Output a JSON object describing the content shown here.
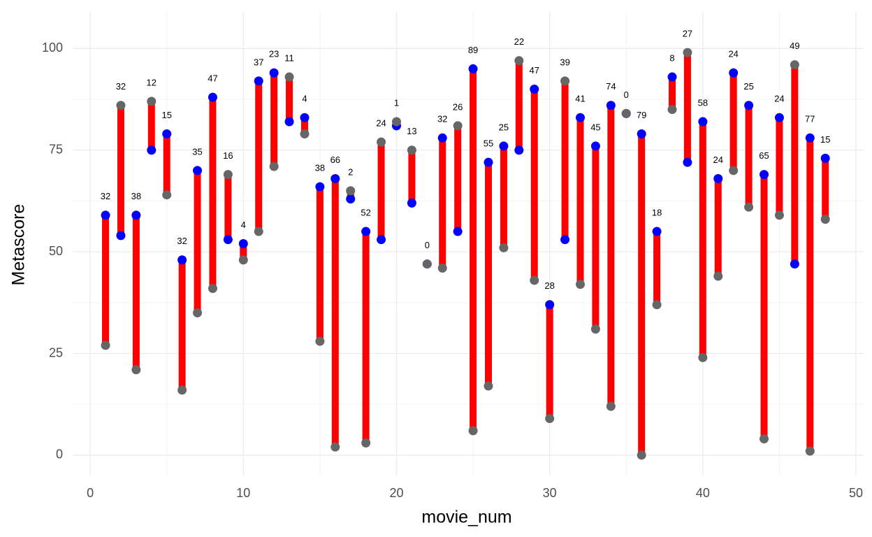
{
  "chart_data": {
    "type": "dumbbell",
    "x_label": "movie_num",
    "y_label": "Metascore",
    "x": [
      1,
      2,
      3,
      4,
      5,
      6,
      7,
      8,
      9,
      10,
      11,
      12,
      13,
      14,
      15,
      16,
      17,
      18,
      19,
      20,
      21,
      22,
      23,
      24,
      25,
      26,
      27,
      28,
      29,
      30,
      31,
      32,
      33,
      34,
      35,
      36,
      37,
      38,
      39,
      40,
      41,
      42,
      43,
      44,
      45,
      46,
      47,
      48
    ],
    "series": [
      {
        "color": "#0000ff",
        "values": [
          59,
          54,
          59,
          75,
          79,
          48,
          70,
          88,
          53,
          52,
          92,
          94,
          82,
          83,
          66,
          68,
          63,
          55,
          53,
          81,
          62,
          47,
          78,
          55,
          95,
          72,
          76,
          75,
          90,
          37,
          53,
          83,
          76,
          86,
          84,
          79,
          55,
          93,
          72,
          82,
          68,
          94,
          86,
          69,
          83,
          47,
          78,
          73
        ]
      },
      {
        "color": "#666666",
        "values": [
          27,
          86,
          21,
          87,
          64,
          16,
          35,
          41,
          69,
          48,
          55,
          71,
          93,
          79,
          28,
          2,
          65,
          3,
          77,
          82,
          75,
          47,
          46,
          81,
          6,
          17,
          51,
          97,
          43,
          9,
          92,
          42,
          31,
          12,
          84,
          0,
          37,
          85,
          99,
          24,
          44,
          70,
          61,
          4,
          59,
          96,
          1,
          58
        ]
      }
    ],
    "labels": [
      32,
      32,
      38,
      12,
      15,
      32,
      35,
      47,
      16,
      4,
      37,
      23,
      11,
      4,
      38,
      66,
      2,
      52,
      24,
      1,
      13,
      0,
      32,
      26,
      89,
      55,
      25,
      22,
      47,
      28,
      39,
      41,
      45,
      74,
      0,
      79,
      18,
      8,
      27,
      58,
      24,
      24,
      25,
      65,
      24,
      49,
      77,
      15
    ],
    "segment_color": "#ff0000",
    "xlim": [
      -1.1,
      50.5
    ],
    "xticks": [
      0,
      10,
      20,
      30,
      40,
      50
    ],
    "ylim": [
      -5,
      109
    ],
    "yticks": [
      0,
      25,
      50,
      75,
      100
    ],
    "grid": true,
    "minor_grid": true
  }
}
